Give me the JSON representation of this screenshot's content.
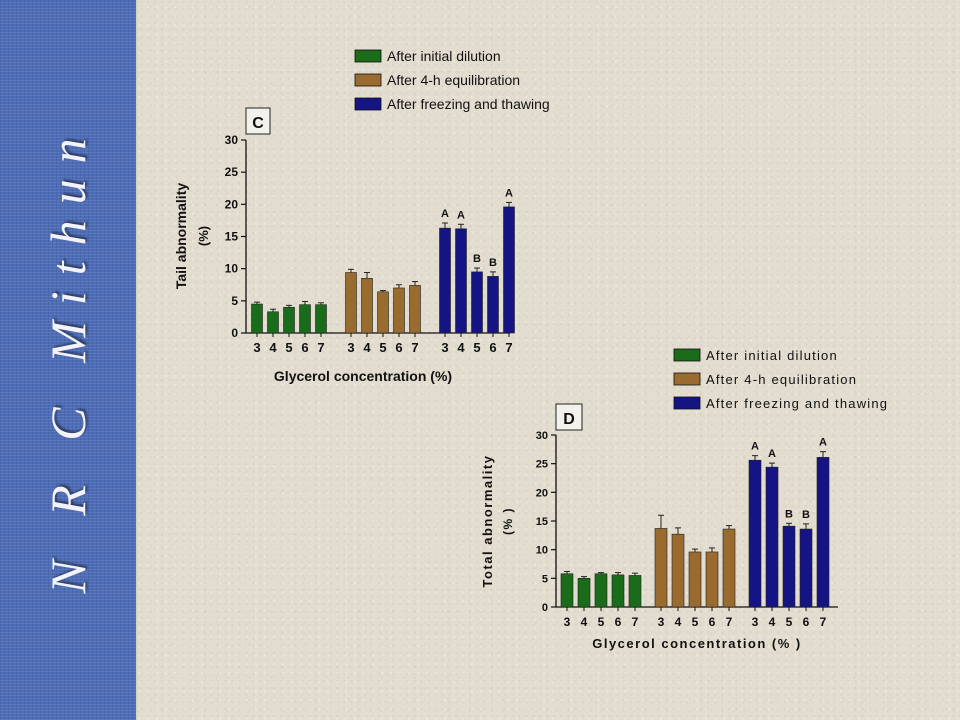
{
  "sidebar": {
    "title": "N R C Mithun"
  },
  "chart_data": [
    {
      "type": "bar",
      "panel_label": "C",
      "ylabel_line1": "Tail abnormality",
      "ylabel_line2": "(%)",
      "xlabel": "Glycerol concentration (%)",
      "ylim": [
        0,
        30
      ],
      "yticks": [
        0,
        5,
        10,
        15,
        20,
        25,
        30
      ],
      "categories": [
        "3",
        "4",
        "5",
        "6",
        "7"
      ],
      "series": [
        {
          "name": "After initial dilution",
          "color": "#1a6b1a",
          "values": [
            4.5,
            3.3,
            4.0,
            4.4,
            4.4
          ],
          "errors": [
            0.3,
            0.4,
            0.3,
            0.5,
            0.3
          ],
          "letters": [
            "",
            "",
            "",
            "",
            ""
          ]
        },
        {
          "name": "After 4-h equilibration",
          "color": "#9a6b2e",
          "values": [
            9.4,
            8.5,
            6.4,
            7.0,
            7.4
          ],
          "errors": [
            0.5,
            0.9,
            0.2,
            0.5,
            0.6
          ],
          "letters": [
            "",
            "",
            "",
            "",
            ""
          ]
        },
        {
          "name": "After freezing and thawing",
          "color": "#141485",
          "values": [
            16.3,
            16.2,
            9.5,
            8.8,
            19.6
          ],
          "errors": [
            0.8,
            0.7,
            0.6,
            0.7,
            0.7
          ],
          "letters": [
            "A",
            "A",
            "B",
            "B",
            "A"
          ]
        }
      ],
      "legend_position": "top"
    },
    {
      "type": "bar",
      "panel_label": "D",
      "ylabel_line1": "Total abnormality",
      "ylabel_line2": "(% )",
      "xlabel": "Glycerol concentration (% )",
      "ylim": [
        0,
        30
      ],
      "yticks": [
        0,
        5,
        10,
        15,
        20,
        25,
        30
      ],
      "categories": [
        "3",
        "4",
        "5",
        "6",
        "7"
      ],
      "series": [
        {
          "name": "After initial dilution",
          "color": "#1a6b1a",
          "values": [
            5.8,
            5.0,
            5.8,
            5.6,
            5.5
          ],
          "errors": [
            0.4,
            0.3,
            0.2,
            0.4,
            0.4
          ],
          "letters": [
            "",
            "",
            "",
            "",
            ""
          ]
        },
        {
          "name": "After 4-h equilibration",
          "color": "#9a6b2e",
          "values": [
            13.7,
            12.7,
            9.6,
            9.6,
            13.6
          ],
          "errors": [
            2.3,
            1.1,
            0.5,
            0.7,
            0.6
          ],
          "letters": [
            "",
            "",
            "",
            "",
            ""
          ]
        },
        {
          "name": "After freezing and thawing",
          "color": "#141485",
          "values": [
            25.6,
            24.4,
            14.1,
            13.6,
            26.1
          ],
          "errors": [
            0.8,
            0.7,
            0.5,
            0.9,
            1.0
          ],
          "letters": [
            "A",
            "A",
            "B",
            "B",
            "A"
          ]
        }
      ],
      "legend_position": "top"
    }
  ]
}
